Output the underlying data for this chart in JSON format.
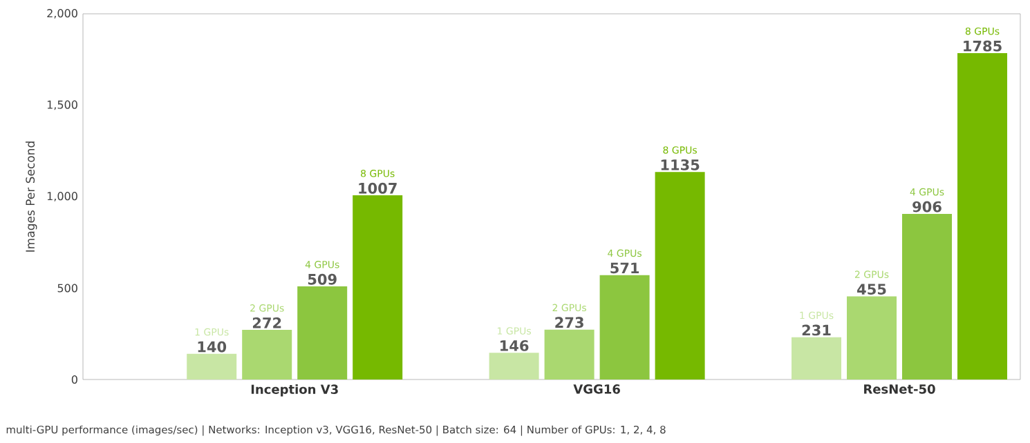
{
  "chart_data": {
    "type": "bar",
    "ylabel": "Images Per Second",
    "categories": [
      "Inception V3",
      "VGG16",
      "ResNet-50"
    ],
    "series": [
      {
        "name": "1 GPUs",
        "color": "#c8e6a4",
        "values": [
          140,
          146,
          231
        ]
      },
      {
        "name": "2 GPUs",
        "color": "#aad870",
        "values": [
          272,
          273,
          455
        ]
      },
      {
        "name": "4 GPUs",
        "color": "#8cc63f",
        "values": [
          509,
          571,
          906
        ]
      },
      {
        "name": "8 GPUs",
        "color": "#76b900",
        "values": [
          1007,
          1135,
          1785
        ]
      }
    ],
    "ylim": [
      0,
      2000
    ],
    "yticks": [
      0,
      500,
      {
        "value": 1000,
        "label": "1,000"
      },
      {
        "value": 1500,
        "label": "1,500"
      },
      {
        "value": 2000,
        "label": "2,000"
      }
    ],
    "data_labels": true,
    "annotations": [
      "multi-GPU performance (images/sec) | Networks: Inception v3, VGG16, ResNet-50 | Batch size: 64 | Number of GPUs: 1, 2, 4, 8"
    ]
  }
}
